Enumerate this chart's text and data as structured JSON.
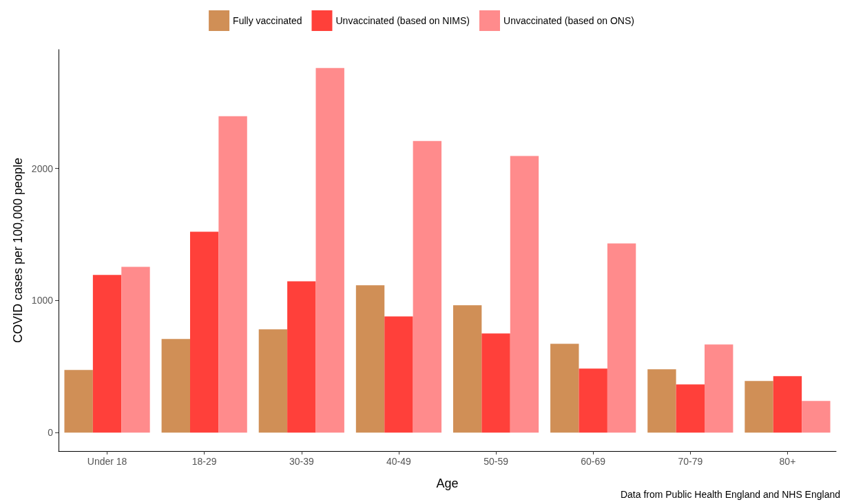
{
  "chart_data": {
    "type": "bar",
    "xlabel": "Age",
    "ylabel": "COVID cases per 100,000 people",
    "categories": [
      "Under 18",
      "18-29",
      "30-39",
      "40-49",
      "50-59",
      "60-69",
      "70-79",
      "80+"
    ],
    "series": [
      {
        "name": "Fully vaccinated",
        "color": "#d08f56",
        "values": [
          474,
          708,
          781,
          1115,
          964,
          672,
          479,
          391
        ]
      },
      {
        "name": "Unvaccinated (based on NIMS)",
        "color": "#ff403a",
        "values": [
          1193,
          1521,
          1146,
          880,
          750,
          484,
          365,
          427
        ]
      },
      {
        "name": "Unvaccinated (based on ONS)",
        "color": "#ff8b8c",
        "values": [
          1255,
          2396,
          2760,
          2208,
          2094,
          1432,
          667,
          240
        ]
      }
    ],
    "ylim": [
      -140,
      2900
    ],
    "yticks": [
      0,
      1000,
      2000
    ],
    "grid": false,
    "legend": "top",
    "annotations": [
      "Data from Public Health England and NHS England"
    ]
  }
}
